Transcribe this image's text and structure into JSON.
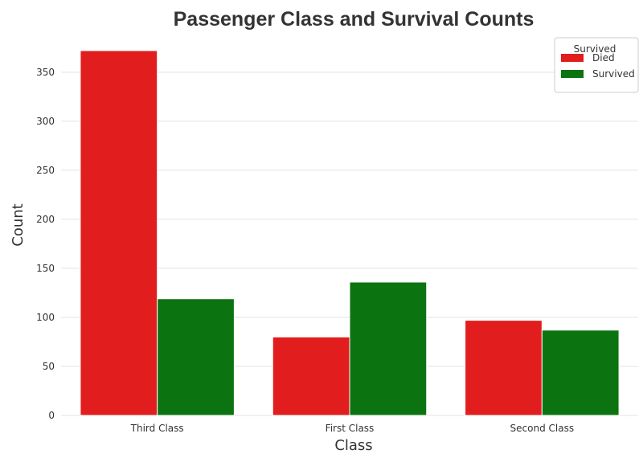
{
  "chart_data": {
    "type": "bar",
    "title": "Passenger Class and Survival Counts",
    "xlabel": "Class",
    "ylabel": "Count",
    "categories": [
      "Third Class",
      "First Class",
      "Second Class"
    ],
    "series": [
      {
        "name": "Died",
        "values": [
          372,
          80,
          97
        ],
        "color": "#e21d1d"
      },
      {
        "name": "Survived",
        "values": [
          119,
          136,
          87
        ],
        "color": "#0b7410"
      }
    ],
    "ylim": [
      0,
      390
    ],
    "yticks": [
      0,
      50,
      100,
      150,
      200,
      250,
      300,
      350
    ],
    "grid": true,
    "legend": {
      "title": "Survived",
      "placement": "top-right"
    }
  }
}
